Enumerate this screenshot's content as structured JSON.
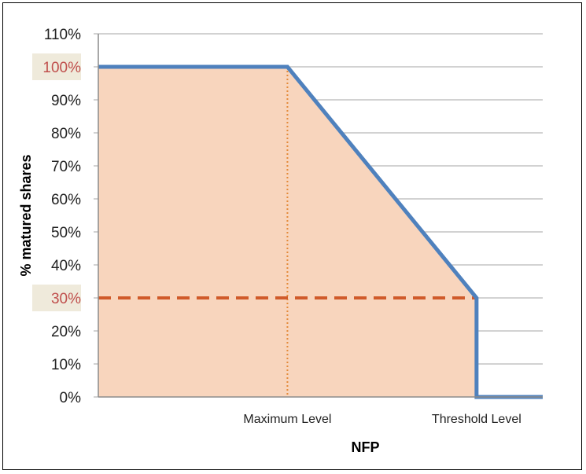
{
  "chart_data": {
    "type": "area",
    "xlabel": "NFP",
    "ylabel": "% matured shares",
    "ylim": [
      0,
      110
    ],
    "y_ticks": [
      "0%",
      "10%",
      "20%",
      "30%",
      "40%",
      "50%",
      "60%",
      "70%",
      "80%",
      "90%",
      "100%",
      "110%"
    ],
    "highlighted_ticks": [
      "30%",
      "100%"
    ],
    "x_labels": [
      "Maximum Level",
      "Threshold Level"
    ],
    "x": [
      0,
      1,
      2,
      2,
      2.35
    ],
    "y": [
      100,
      100,
      30,
      0,
      0
    ],
    "x_range": [
      0,
      2.35
    ],
    "reference_lines": [
      {
        "orientation": "horizontal",
        "value": 30,
        "style": "dashed"
      },
      {
        "orientation": "vertical",
        "at": "Maximum Level",
        "style": "dotted"
      }
    ],
    "grid": true,
    "colors": {
      "line": "#4f81bd",
      "fill": "#f8d5bd",
      "dashed_ref": "#d05a2a",
      "dotted_ref": "#e48c3c",
      "grid": "#a6a6a6",
      "tick_highlight_bg": "#efeadb",
      "tick_highlight_text": "#c0504d"
    }
  }
}
